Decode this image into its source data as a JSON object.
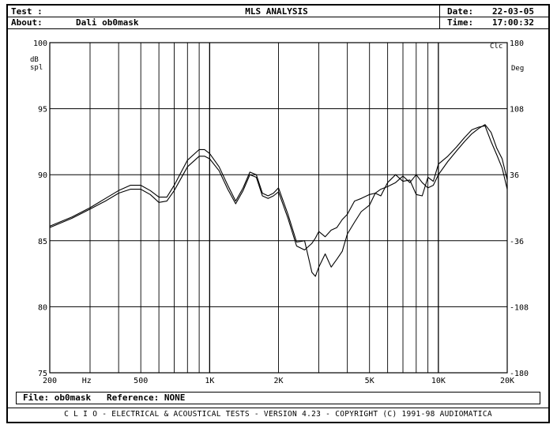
{
  "header": {
    "test_label": "Test :",
    "about_label": "About:",
    "about_value": "Dali ob0mask",
    "title": "MLS ANALYSIS",
    "date_label": "Date:",
    "date_value": "22-03-05",
    "time_label": "Time:",
    "time_value": "17:00:32"
  },
  "chart_data": {
    "type": "line",
    "xscale": "log",
    "xlim": [
      200,
      20000
    ],
    "ylim": [
      75,
      100
    ],
    "y2lim": [
      -180,
      180
    ],
    "grid": true,
    "left_axis_label": [
      "dB",
      "spl"
    ],
    "right_axis_label": [
      "Clc",
      "Deg"
    ],
    "left_ticks": [
      "100",
      "95",
      "90",
      "85",
      "80",
      "75"
    ],
    "left_tick_values": [
      100,
      95,
      90,
      85,
      80,
      75
    ],
    "right_ticks": [
      "180",
      "108",
      "36",
      "-36",
      "-108",
      "-180"
    ],
    "x_ticks": [
      "200",
      "Hz",
      "500",
      "1K",
      "2K",
      "5K",
      "10K",
      "20K"
    ],
    "x_tick_values": [
      200,
      290,
      500,
      1000,
      2000,
      5000,
      10000,
      20000
    ],
    "series": [
      {
        "x": [
          200,
          250,
          300,
          350,
          400,
          450,
          500,
          550,
          600,
          650,
          700,
          800,
          900,
          950,
          1000,
          1100,
          1200,
          1300,
          1400,
          1500,
          1600,
          1700,
          1800,
          1900,
          2000,
          2200,
          2400,
          2600,
          2800,
          2900,
          3000,
          3200,
          3400,
          3600,
          3800,
          4000,
          4300,
          4600,
          5000,
          5300,
          5600,
          6000,
          6500,
          7000,
          7500,
          8000,
          8500,
          9000,
          9500,
          10000,
          11000,
          12000,
          13000,
          14000,
          15000,
          16000,
          17000,
          18000,
          19000,
          20000
        ],
        "values": [
          86.1,
          86.8,
          87.5,
          88.2,
          88.8,
          89.2,
          89.2,
          88.8,
          88.3,
          88.3,
          89.2,
          91.1,
          91.9,
          91.9,
          91.6,
          90.6,
          89.2,
          88.0,
          89.0,
          90.2,
          90.0,
          88.6,
          88.4,
          88.6,
          89.0,
          87.0,
          84.9,
          85.0,
          82.6,
          82.3,
          83.0,
          84.0,
          83.0,
          83.6,
          84.2,
          85.5,
          86.4,
          87.2,
          87.7,
          88.6,
          88.9,
          89.1,
          89.4,
          89.9,
          89.4,
          90.0,
          89.4,
          89.0,
          89.2,
          90.0,
          91.0,
          91.8,
          92.5,
          93.1,
          93.5,
          93.8,
          93.2,
          92.0,
          91.2,
          89.6
        ]
      },
      {
        "x": [
          200,
          250,
          300,
          350,
          400,
          450,
          500,
          550,
          600,
          650,
          700,
          800,
          900,
          950,
          1000,
          1100,
          1200,
          1300,
          1400,
          1500,
          1600,
          1700,
          1800,
          1900,
          2000,
          2200,
          2400,
          2600,
          2800,
          2900,
          3000,
          3200,
          3400,
          3600,
          3800,
          4000,
          4300,
          4600,
          5000,
          5300,
          5600,
          6000,
          6500,
          7000,
          7500,
          8000,
          8500,
          9000,
          9500,
          10000,
          11000,
          12000,
          13000,
          14000,
          15000,
          16000,
          17000,
          18000,
          19000,
          20000
        ],
        "values": [
          86.0,
          86.7,
          87.4,
          88.0,
          88.6,
          88.9,
          88.9,
          88.5,
          87.9,
          88.0,
          88.8,
          90.6,
          91.4,
          91.4,
          91.2,
          90.3,
          88.9,
          87.8,
          88.8,
          90.0,
          89.8,
          88.4,
          88.2,
          88.4,
          88.7,
          86.7,
          84.6,
          84.3,
          84.8,
          85.2,
          85.7,
          85.3,
          85.8,
          86.0,
          86.6,
          87.0,
          88.0,
          88.2,
          88.5,
          88.6,
          88.4,
          89.4,
          90.0,
          89.5,
          89.6,
          88.5,
          88.4,
          89.8,
          89.5,
          90.8,
          91.4,
          92.1,
          92.8,
          93.4,
          93.6,
          93.7,
          92.5,
          91.5,
          90.5,
          88.9
        ]
      }
    ]
  },
  "file_box": {
    "file_label": "File:",
    "file_value": "ob0mask",
    "reference_label": "Reference:",
    "reference_value": "NONE"
  },
  "footer": {
    "text": "C L I O  -  ELECTRICAL & ACOUSTICAL TESTS  -  VERSION 4.23  -  COPYRIGHT (C) 1991-98 AUDIOMATICA"
  }
}
